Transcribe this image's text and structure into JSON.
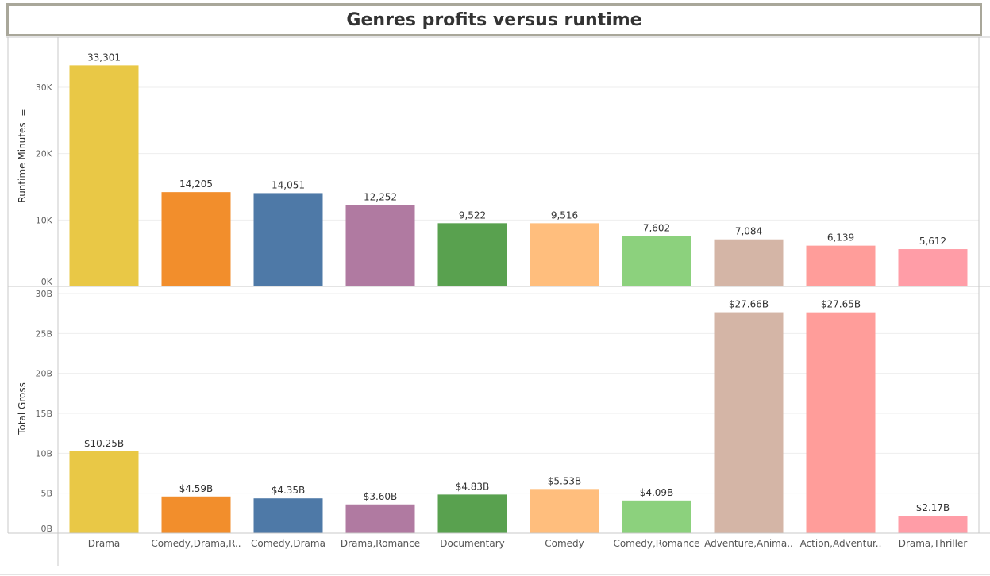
{
  "title": "Genres profits versus runtime",
  "colors": [
    "#e9c846",
    "#f28e2c",
    "#4e79a7",
    "#b07aa1",
    "#59a14f",
    "#ffbe7d",
    "#8cd17d",
    "#d4b5a6",
    "#ff9d9a",
    "#ff9da7"
  ],
  "chart_data": [
    {
      "type": "bar",
      "ylabel": "Runtime Minutes",
      "ylim": [
        0,
        35000
      ],
      "yticks": [
        {
          "value": 0,
          "label": "0K"
        },
        {
          "value": 10000,
          "label": "10K"
        },
        {
          "value": 20000,
          "label": "20K"
        },
        {
          "value": 30000,
          "label": "30K"
        }
      ],
      "categories": [
        "Drama",
        "Comedy,Drama,R..",
        "Comedy,Drama",
        "Drama,Romance",
        "Documentary",
        "Comedy",
        "Comedy,Romance",
        "Adventure,Anima..",
        "Action,Adventur..",
        "Drama,Thriller"
      ],
      "values": [
        33301,
        14205,
        14051,
        12252,
        9522,
        9516,
        7602,
        7084,
        6139,
        5612
      ],
      "labels": [
        "33,301",
        "14,205",
        "14,051",
        "12,252",
        "9,522",
        "9,516",
        "7,602",
        "7,084",
        "6,139",
        "5,612"
      ],
      "sort_icon": "sort-descending-icon"
    },
    {
      "type": "bar",
      "ylabel": "Total Gross",
      "ylim": [
        0,
        30000000000
      ],
      "yticks": [
        {
          "value": 0,
          "label": "0B"
        },
        {
          "value": 5000000000,
          "label": "5B"
        },
        {
          "value": 10000000000,
          "label": "10B"
        },
        {
          "value": 15000000000,
          "label": "15B"
        },
        {
          "value": 20000000000,
          "label": "20B"
        },
        {
          "value": 25000000000,
          "label": "25B"
        },
        {
          "value": 30000000000,
          "label": "30B"
        }
      ],
      "categories": [
        "Drama",
        "Comedy,Drama,R..",
        "Comedy,Drama",
        "Drama,Romance",
        "Documentary",
        "Comedy",
        "Comedy,Romance",
        "Adventure,Anima..",
        "Action,Adventur..",
        "Drama,Thriller"
      ],
      "values": [
        10250000000,
        4590000000,
        4350000000,
        3600000000,
        4830000000,
        5530000000,
        4090000000,
        27660000000,
        27650000000,
        2170000000
      ],
      "labels": [
        "$10.25B",
        "$4.59B",
        "$4.35B",
        "$3.60B",
        "$4.83B",
        "$5.53B",
        "$4.09B",
        "$27.66B",
        "$27.65B",
        "$2.17B"
      ]
    }
  ]
}
